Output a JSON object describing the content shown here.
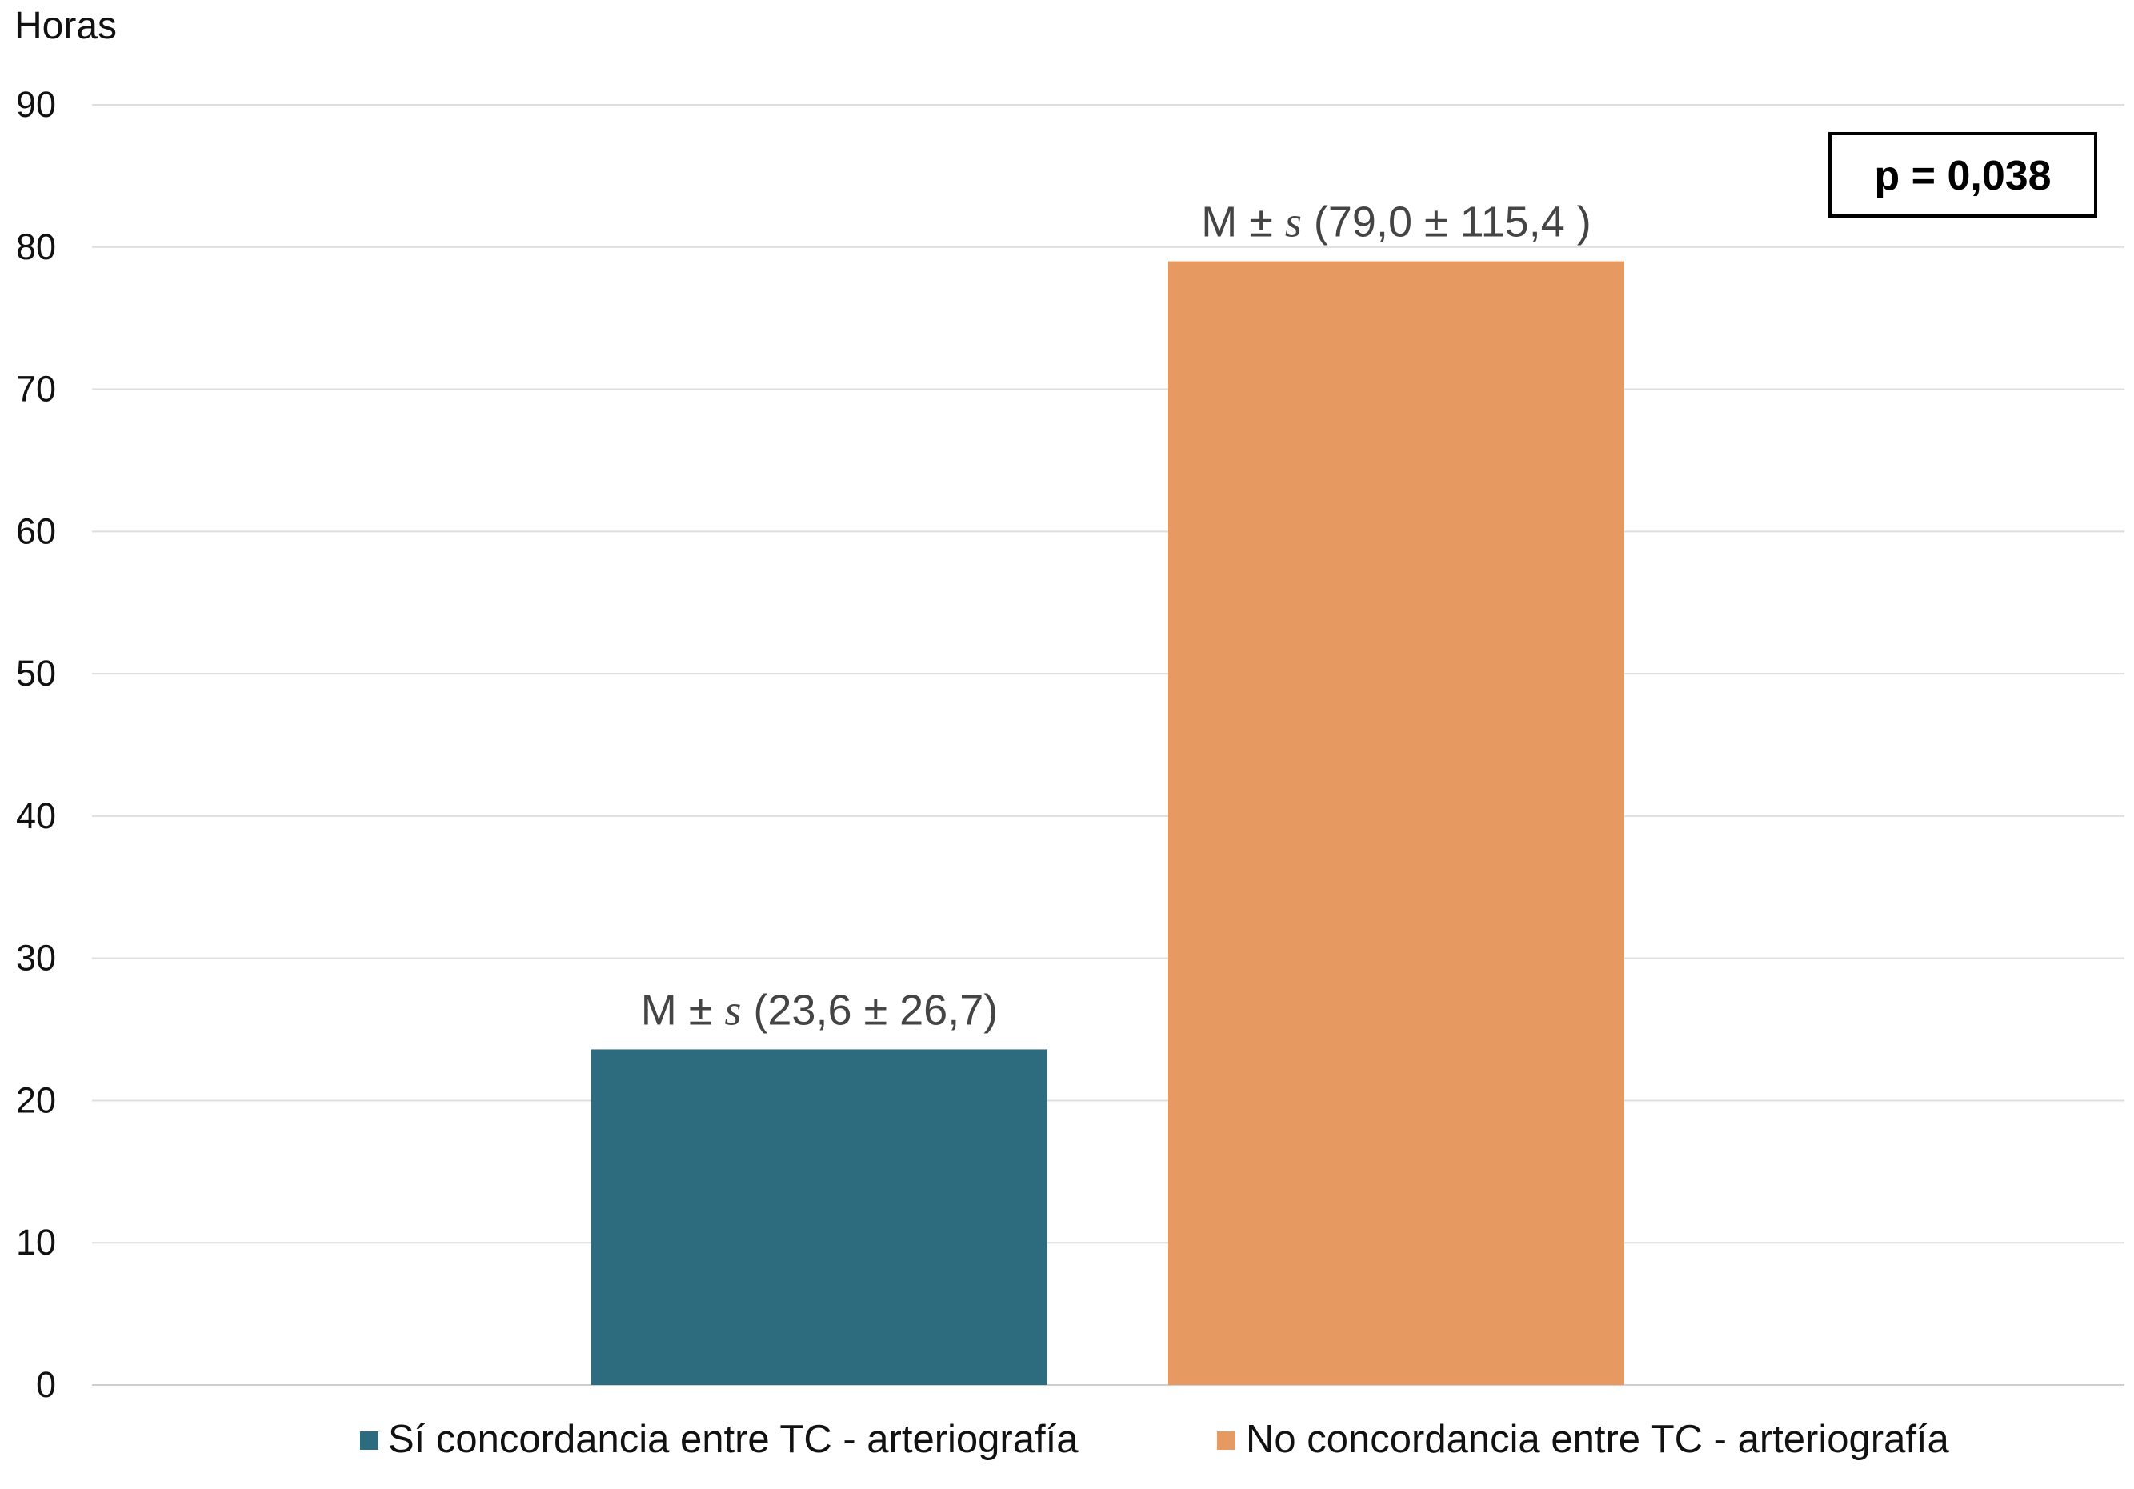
{
  "chart_data": {
    "type": "bar",
    "ylabel": "Horas",
    "ylim": [
      0,
      90
    ],
    "yticks": [
      0,
      10,
      20,
      30,
      40,
      50,
      60,
      70,
      80,
      90
    ],
    "grid": true,
    "legend_position": "bottom",
    "series": [
      {
        "name": "Sí concordancia entre TC - arteriografía",
        "value": 23.6,
        "color": "#2d6b7f",
        "label_prefix": "M ± ",
        "label_italic": "s",
        "label_suffix": " (23,6 ± 26,7)"
      },
      {
        "name": "No concordancia entre TC - arteriografía",
        "value": 79.0,
        "color": "#e69a61",
        "label_prefix": "M ± ",
        "label_italic": "s",
        "label_suffix": " (79,0 ± 115,4 )"
      }
    ],
    "annotation": "p = 0,038"
  }
}
